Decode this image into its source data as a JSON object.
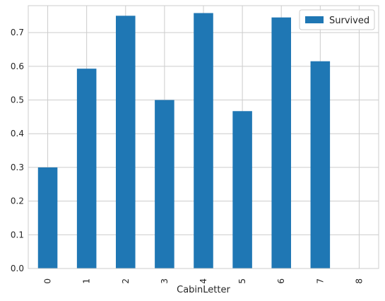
{
  "chart_data": {
    "type": "bar",
    "categories": [
      "0",
      "1",
      "2",
      "3",
      "4",
      "5",
      "6",
      "7",
      "8"
    ],
    "series": [
      {
        "name": "Survived",
        "values": [
          0.3,
          0.593,
          0.75,
          0.5,
          0.758,
          0.467,
          0.745,
          0.615,
          0.0
        ]
      }
    ],
    "xlabel": "CabinLetter",
    "ylabel": "",
    "ylim": [
      0,
      0.78
    ],
    "yticks": [
      "0.0",
      "0.1",
      "0.2",
      "0.3",
      "0.4",
      "0.5",
      "0.6",
      "0.7"
    ],
    "grid": true,
    "legend": "top-right",
    "colors": {
      "bar": "#1f77b4",
      "grid": "#cccccc",
      "axis_text": "#262626",
      "legend_border": "#cccccc"
    }
  }
}
